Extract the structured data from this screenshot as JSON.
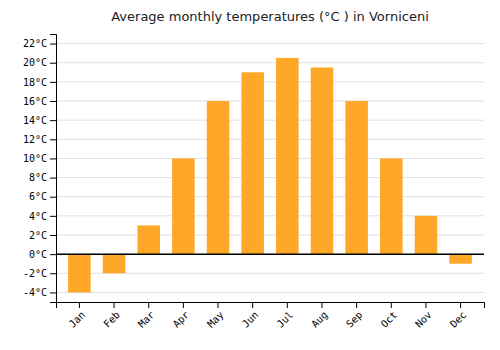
{
  "chart_data": {
    "type": "bar",
    "title": "Average monthly temperatures (°C ) in Vorniceni",
    "categories": [
      "Jan",
      "Feb",
      "Mar",
      "Apr",
      "May",
      "Jun",
      "Jul",
      "Aug",
      "Sep",
      "Oct",
      "Nov",
      "Dec"
    ],
    "values": [
      -4,
      -2,
      3,
      10,
      16,
      19,
      20.5,
      19.5,
      16,
      10,
      4,
      -1
    ],
    "color": "#FFA726",
    "ylim": [
      -5,
      23
    ],
    "yticks": [
      {
        "value": -4,
        "label": "-4°C"
      },
      {
        "value": -2,
        "label": "-2°C"
      },
      {
        "value": 0,
        "label": "0°C"
      },
      {
        "value": 2,
        "label": "2°C"
      },
      {
        "value": 4,
        "label": "4°C"
      },
      {
        "value": 6,
        "label": "6°C"
      },
      {
        "value": 8,
        "label": "8°C"
      },
      {
        "value": 10,
        "label": "10°C"
      },
      {
        "value": 12,
        "label": "12°C"
      },
      {
        "value": 14,
        "label": "14°C"
      },
      {
        "value": 16,
        "label": "16°C"
      },
      {
        "value": 18,
        "label": "18°C"
      },
      {
        "value": 20,
        "label": "20°C"
      },
      {
        "value": 22,
        "label": "22°C"
      }
    ],
    "grid": true
  }
}
